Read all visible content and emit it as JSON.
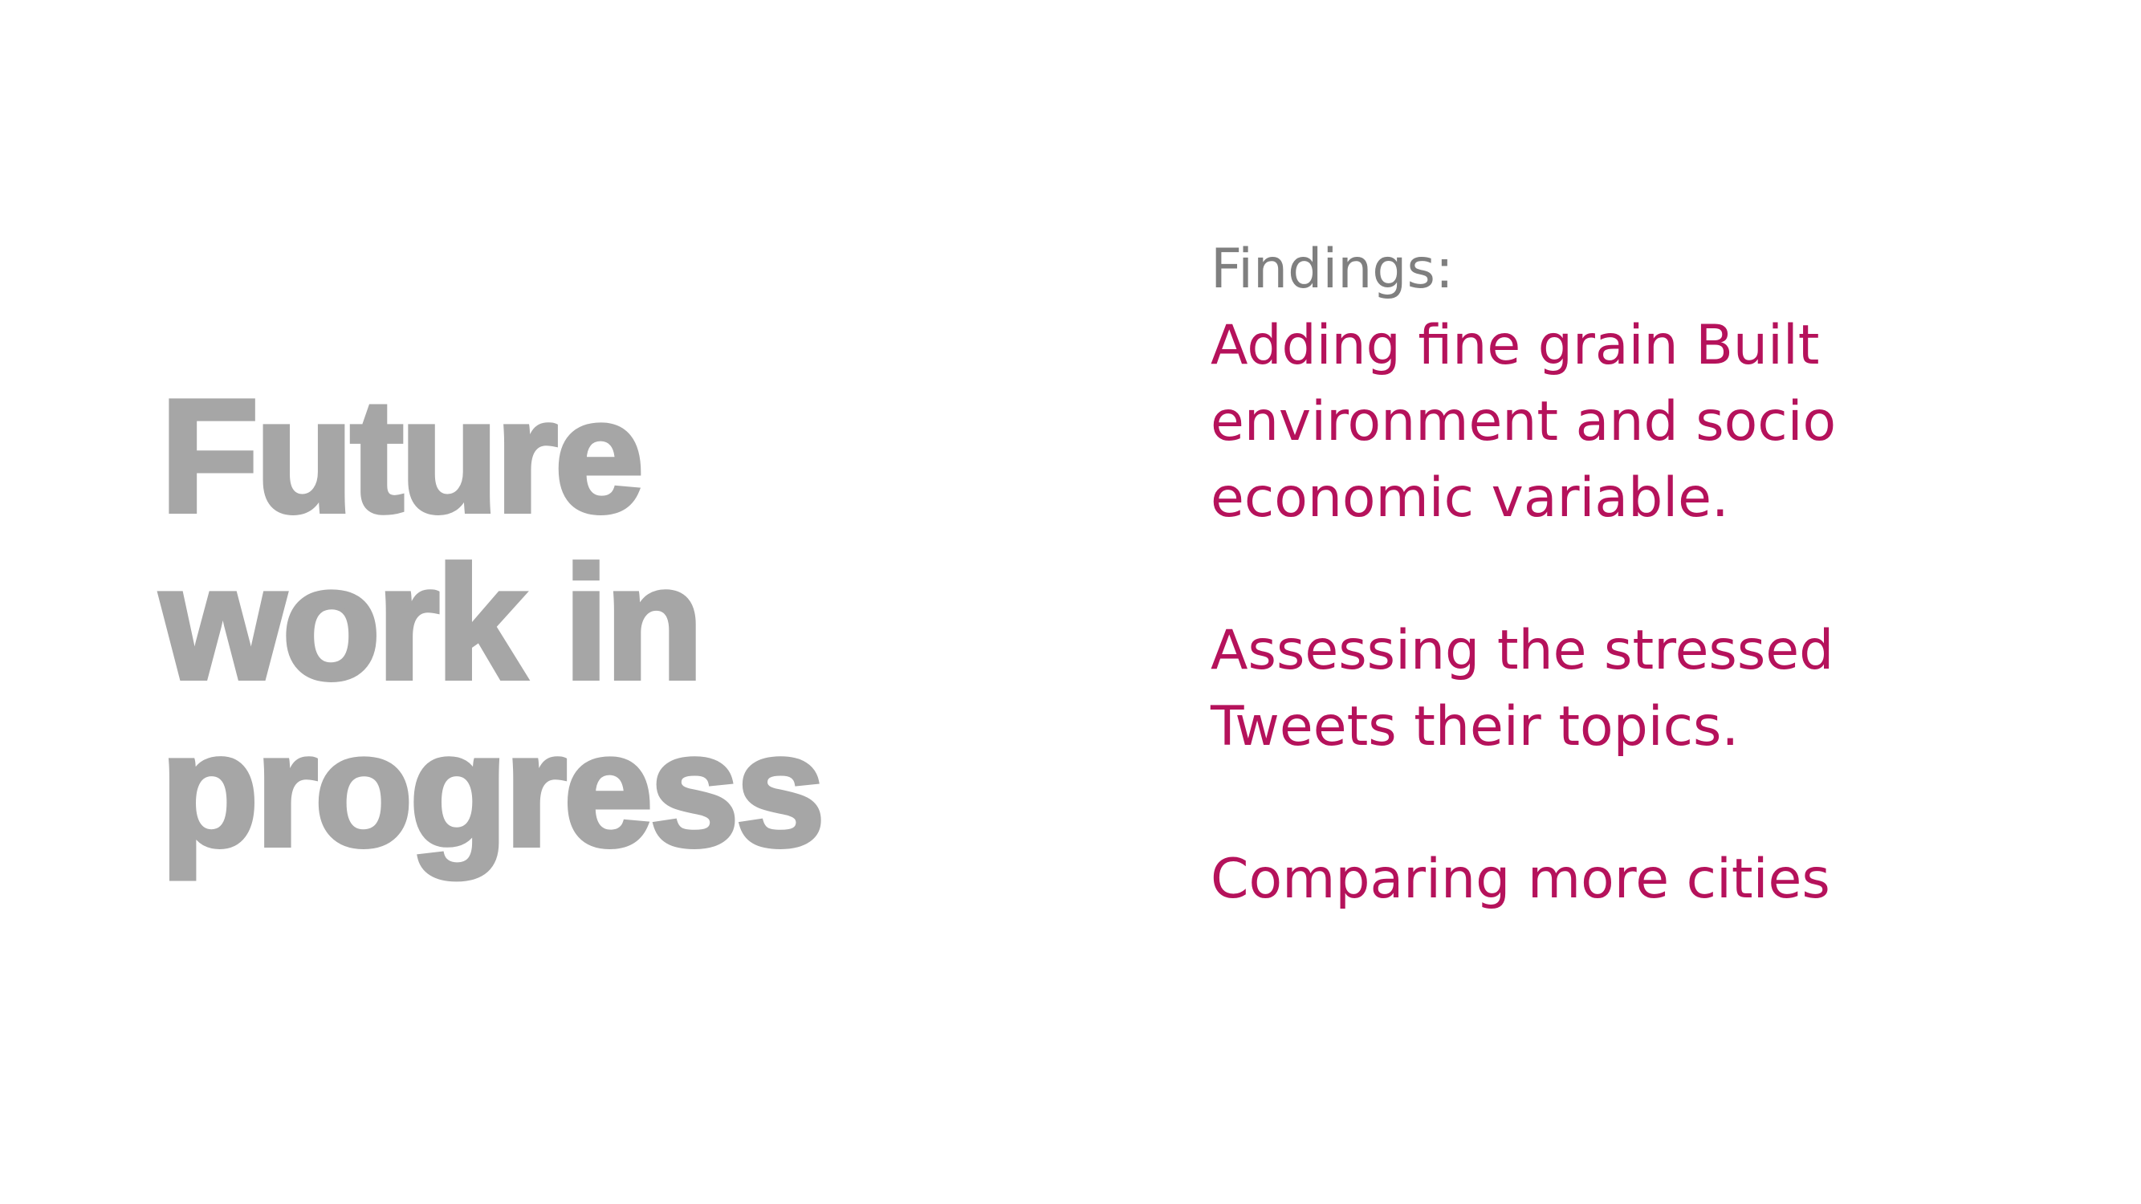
{
  "title": {
    "lines": [
      "Future",
      "work in",
      "progress"
    ],
    "color": "#a6a6a6"
  },
  "findings": {
    "heading": "Findings:",
    "heading_color": "#7f7f7f",
    "item_color": "#b5125b",
    "items": [
      {
        "lines": [
          "Adding fine grain Built",
          "environment and socio",
          "economic variable."
        ]
      },
      {
        "lines": [
          "Assessing the stressed",
          "Tweets their topics."
        ]
      },
      {
        "lines": [
          "Comparing more cities"
        ]
      }
    ]
  }
}
